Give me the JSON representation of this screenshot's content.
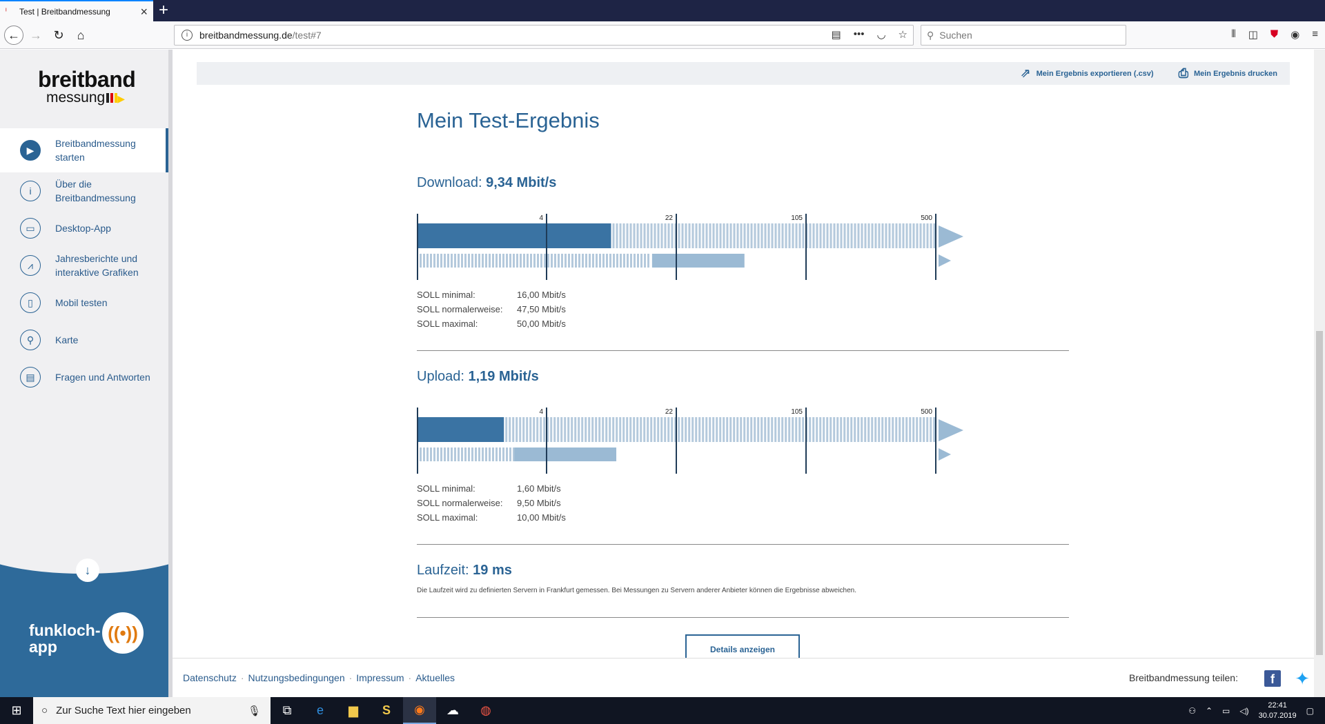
{
  "browser": {
    "tab_title": "Test | Breitbandmessung",
    "new_tab": "+",
    "url_host": "breitbandmessung.de",
    "url_path": "/test#7",
    "search_placeholder": "Suchen"
  },
  "sidebar": {
    "logo_line1": "breitband",
    "logo_line2": "messung",
    "items": [
      {
        "label": "Breitbandmessung starten",
        "icon": "play-icon"
      },
      {
        "label": "Über die Breitbandmessung",
        "icon": "info-icon"
      },
      {
        "label": "Desktop-App",
        "icon": "monitor-icon"
      },
      {
        "label": "Jahresberichte und interaktive Grafiken",
        "icon": "chart-icon"
      },
      {
        "label": "Mobil testen",
        "icon": "phone-icon"
      },
      {
        "label": "Karte",
        "icon": "map-pin-icon"
      },
      {
        "label": "Fragen und Antworten",
        "icon": "chat-icon"
      }
    ],
    "promo_text_1": "funkloch-",
    "promo_text_2": "app"
  },
  "actions": {
    "export": "Mein Ergebnis exportieren (.csv)",
    "print": "Mein Ergebnis drucken"
  },
  "result": {
    "heading": "Mein Test-Ergebnis",
    "scale_labels": [
      "4",
      "22",
      "105",
      "500"
    ],
    "download": {
      "label": "Download:",
      "value": "9,34 Mbit/s",
      "measured_mbit": 9.34,
      "soll_range_mbit": [
        16.0,
        50.0
      ],
      "soll": [
        {
          "k": "SOLL minimal:",
          "v": "16,00 Mbit/s"
        },
        {
          "k": "SOLL normalerweise:",
          "v": "47,50 Mbit/s"
        },
        {
          "k": "SOLL maximal:",
          "v": "50,00 Mbit/s"
        }
      ]
    },
    "upload": {
      "label": "Upload:",
      "value": "1,19 Mbit/s",
      "measured_mbit": 1.19,
      "soll_range_mbit": [
        1.6,
        10.0
      ],
      "soll": [
        {
          "k": "SOLL minimal:",
          "v": "1,60 Mbit/s"
        },
        {
          "k": "SOLL normalerweise:",
          "v": "9,50 Mbit/s"
        },
        {
          "k": "SOLL maximal:",
          "v": "10,00 Mbit/s"
        }
      ]
    },
    "latency": {
      "label": "Laufzeit:",
      "value": "19 ms",
      "note": "Die Laufzeit wird zu definierten Servern in Frankfurt gemessen. Bei Messungen zu Servern anderer Anbieter können die Ergebnisse abweichen."
    },
    "details_button": "Details anzeigen"
  },
  "footer": {
    "links": [
      "Datenschutz",
      "Nutzungsbedingungen",
      "Impressum",
      "Aktuelles"
    ],
    "share_label": "Breitbandmessung teilen:"
  },
  "taskbar": {
    "search_placeholder": "Zur Suche Text hier eingeben",
    "time": "22:41",
    "date": "30.07.2019"
  },
  "colors": {
    "primary": "#2a6394",
    "bar_dark": "#3a73a3",
    "bar_light": "#9bbad4",
    "stripe": "#b4c9dc"
  }
}
